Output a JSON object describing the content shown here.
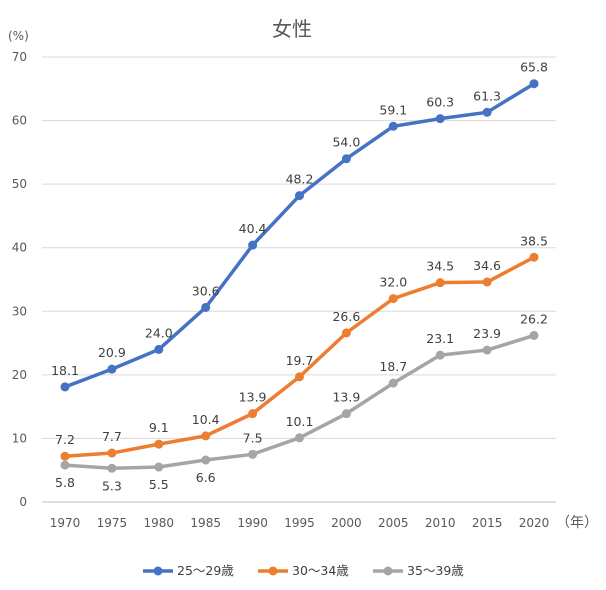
{
  "chart_data": {
    "type": "line",
    "title": "女性",
    "ylabel": "(%)",
    "xlabel": "（年）",
    "ylim": [
      0,
      70
    ],
    "yticks": [
      0,
      10,
      20,
      30,
      40,
      50,
      60,
      70
    ],
    "grid": true,
    "legend_placement": "bottom",
    "categories": [
      "1970",
      "1975",
      "1980",
      "1985",
      "1990",
      "1995",
      "2000",
      "2005",
      "2010",
      "2015",
      "2020"
    ],
    "series": [
      {
        "name": "25〜29歳",
        "color": "#4472C4",
        "values": [
          18.1,
          20.9,
          24.0,
          30.6,
          40.4,
          48.2,
          54.0,
          59.1,
          60.3,
          61.3,
          65.8
        ]
      },
      {
        "name": "30〜34歳",
        "color": "#ED7D31",
        "values": [
          7.2,
          7.7,
          9.1,
          10.4,
          13.9,
          19.7,
          26.6,
          32.0,
          34.5,
          34.6,
          38.5
        ]
      },
      {
        "name": "35〜39歳",
        "color": "#A5A5A5",
        "values": [
          5.8,
          5.3,
          5.5,
          6.6,
          7.5,
          10.1,
          13.9,
          18.7,
          23.1,
          23.9,
          26.2
        ]
      }
    ]
  }
}
